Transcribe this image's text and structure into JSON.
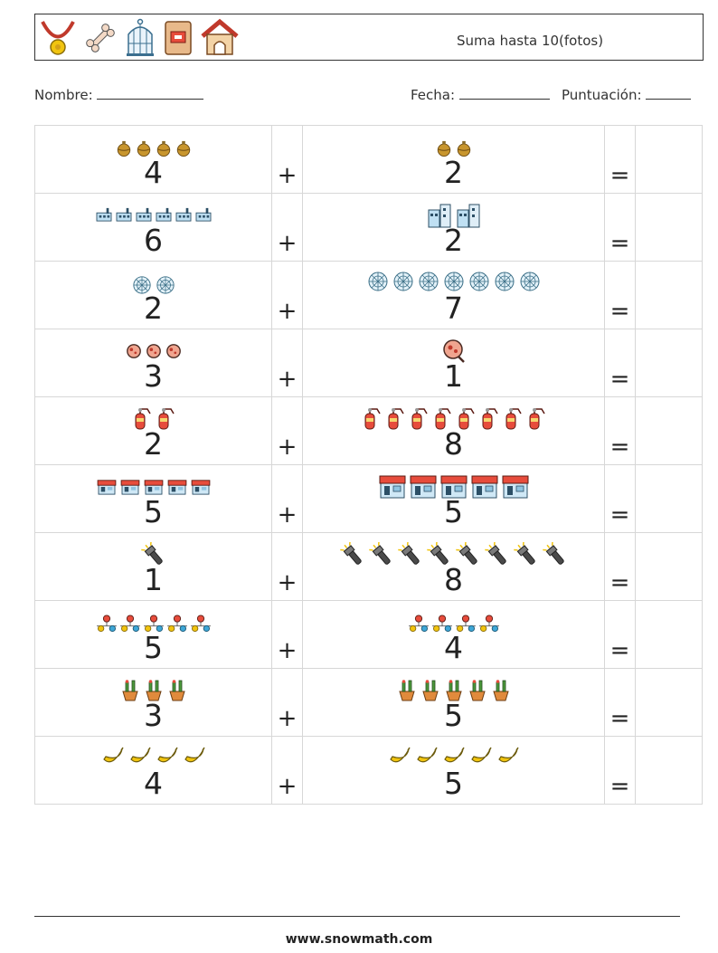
{
  "header": {
    "title": "Suma hasta 10(fotos)",
    "icons": [
      "medal-icon",
      "bone-icon",
      "birdcage-icon",
      "pet-food-icon",
      "doghouse-icon"
    ]
  },
  "info": {
    "name_label": "Nombre:",
    "date_label": "Fecha:",
    "score_label": "Puntuación:"
  },
  "rows": [
    {
      "a": 4,
      "b": 2,
      "a_icon": "ornament-icon",
      "b_icon": "ornament-icon"
    },
    {
      "a": 6,
      "b": 2,
      "a_icon": "factory-icon",
      "b_icon": "city-icon"
    },
    {
      "a": 2,
      "b": 7,
      "a_icon": "spiderweb-icon",
      "b_icon": "spiderweb-icon"
    },
    {
      "a": 3,
      "b": 1,
      "a_icon": "bacteria-icon",
      "b_icon": "bacteria-search-icon"
    },
    {
      "a": 2,
      "b": 8,
      "a_icon": "fire-extinguisher-icon",
      "b_icon": "fire-extinguisher-icon"
    },
    {
      "a": 5,
      "b": 5,
      "a_icon": "store-icon",
      "b_icon": "shop-icon"
    },
    {
      "a": 1,
      "b": 8,
      "a_icon": "flashlight-icon",
      "b_icon": "flashlight-icon"
    },
    {
      "a": 5,
      "b": 4,
      "a_icon": "network-icon",
      "b_icon": "network-icon"
    },
    {
      "a": 3,
      "b": 5,
      "a_icon": "cactus-pot-icon",
      "b_icon": "cactus-pot-icon"
    },
    {
      "a": 4,
      "b": 5,
      "a_icon": "banana-icon",
      "b_icon": "banana-icon"
    }
  ],
  "plus_sign": "+",
  "equals_sign": "=",
  "footer": "www.snowmath.com"
}
